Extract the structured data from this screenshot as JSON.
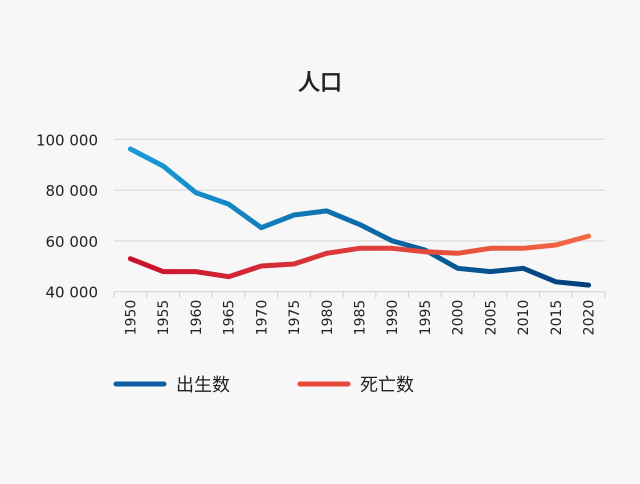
{
  "chart_data": {
    "type": "line",
    "title": "人口",
    "xlabel": "",
    "ylabel": "",
    "categories": [
      "1950",
      "1955",
      "1960",
      "1965",
      "1970",
      "1975",
      "1980",
      "1985",
      "1990",
      "1995",
      "2000",
      "2005",
      "2010",
      "2015",
      "2020"
    ],
    "ylim": [
      40000,
      100000
    ],
    "yticks": [
      40000,
      60000,
      80000,
      100000
    ],
    "ytick_labels": [
      "40 000",
      "60 000",
      "80 000",
      "100 000"
    ],
    "grid": true,
    "legend_position": "bottom-left",
    "series": [
      {
        "name": "出生数",
        "color_start": "#1a9ad9",
        "color_end": "#003d7a",
        "legend_color": "#0e5fa3",
        "values": [
          96200,
          89500,
          79000,
          74500,
          65200,
          70200,
          71800,
          66500,
          60000,
          56400,
          49200,
          47900,
          49200,
          43900,
          42600
        ]
      },
      {
        "name": "死亡数",
        "color_start": "#c8102e",
        "color_end": "#f26a45",
        "legend_color": "#e8473a",
        "values": [
          53000,
          47900,
          47900,
          45900,
          50100,
          50900,
          55100,
          57100,
          57100,
          55700,
          55100,
          57100,
          57100,
          58400,
          61900
        ]
      }
    ]
  }
}
